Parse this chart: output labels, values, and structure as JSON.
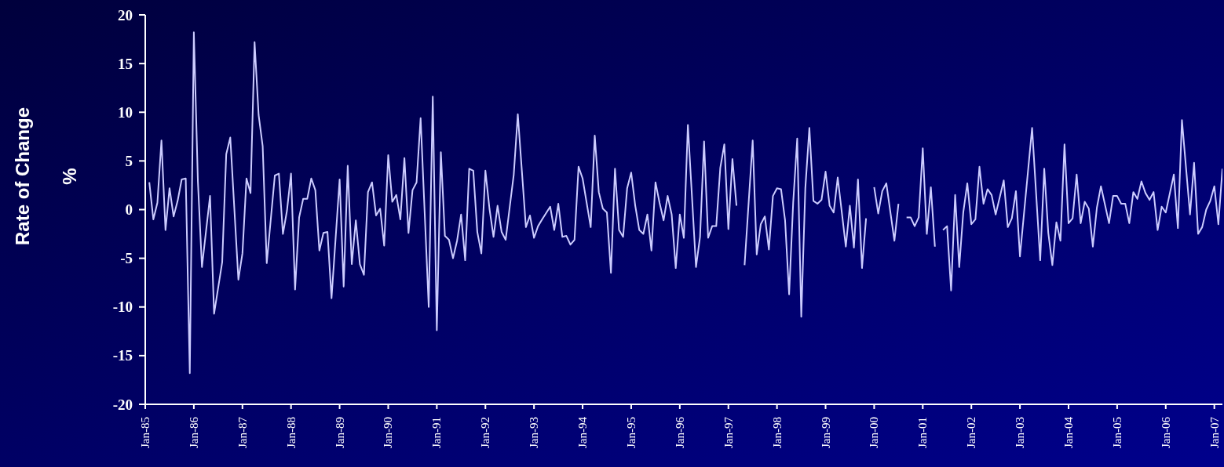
{
  "chart_data": {
    "type": "line",
    "ylabel": "Rate of Change %",
    "color": "#ccccff",
    "x": [
      "1985-02",
      "1985-03",
      "1985-04",
      "1985-05",
      "1985-06",
      "1985-07",
      "1985-08",
      "1985-09",
      "1985-10",
      "1985-11",
      "1985-12",
      "1986-01",
      "1986-02",
      "1986-03",
      "1986-05",
      "1986-06",
      "1986-08",
      "1986-09",
      "1986-10",
      "1986-12",
      "1987-01",
      "1987-02",
      "1987-03",
      "1987-04",
      "1987-05",
      "1987-06",
      "1987-07",
      "1987-09",
      "1987-10",
      "1987-11",
      "1987-12",
      "1988-01",
      "1988-02",
      "1988-03",
      "1988-04",
      "1988-05",
      "1988-06",
      "1988-07",
      "1988-08",
      "1988-09",
      "1988-10",
      "1988-11",
      "1989-01",
      "1989-02",
      "1989-03",
      "1989-04",
      "1989-05",
      "1989-06",
      "1989-07",
      "1989-08",
      "1989-09",
      "1989-10",
      "1989-11",
      "1989-12",
      "1990-01",
      "1990-02",
      "1990-03",
      "1990-04",
      "1990-05",
      "1990-06",
      "1990-07",
      "1990-08",
      "1990-09",
      "1990-11",
      "1990-12",
      "1991-01",
      "1991-02",
      "1991-03",
      "1991-04",
      "1991-05",
      "1991-06",
      "1991-07",
      "1991-08",
      "1991-09",
      "1991-10",
      "1991-11",
      "1991-12",
      "1992-01",
      "1992-02",
      "1992-03",
      "1992-04",
      "1992-05",
      "1992-06",
      "1992-08",
      "1992-09",
      "1992-11",
      "1992-12",
      "1993-01",
      "1993-02",
      "1993-03",
      "1993-05",
      "1993-06",
      "1993-07",
      "1993-08",
      "1993-09",
      "1993-10",
      "1993-11",
      "1993-12",
      "1994-01",
      "1994-03",
      "1994-04",
      "1994-05",
      "1994-06",
      "1994-07",
      "1994-08",
      "1994-09",
      "1994-10",
      "1994-11",
      "1994-12",
      "1995-01",
      "1995-02",
      "1995-03",
      "1995-04",
      "1995-05",
      "1995-06",
      "1995-07",
      "1995-08",
      "1995-09",
      "1995-10",
      "1995-11",
      "1995-12",
      "1996-01",
      "1996-02",
      "1996-03",
      "1996-05",
      "1996-06",
      "1996-07",
      "1996-08",
      "1996-09",
      "1996-10",
      "1996-11",
      "1996-12",
      "1997-01",
      "1997-02",
      "1997-03",
      "1997-04",
      "1997-05",
      "1997-07",
      "1997-08",
      "1997-09",
      "1997-10",
      "1997-11",
      "1997-12",
      "1998-01",
      "1998-02",
      "1998-03",
      "1998-04",
      "1998-05",
      "1998-06",
      "1998-07",
      "1998-08",
      "1998-09",
      "1998-10",
      "1998-11",
      "1998-12",
      "1999-01",
      "1999-02",
      "1999-03",
      "1999-04",
      "1999-06",
      "1999-07",
      "1999-08",
      "1999-09",
      "1999-10",
      "1999-11",
      "1999-12",
      "2000-01",
      "2000-02",
      "2000-03",
      "2000-04",
      "2000-06",
      "2000-07",
      "2000-08",
      "2000-09",
      "2000-10",
      "2000-11",
      "2000-12",
      "2001-01",
      "2001-02",
      "2001-03",
      "2001-04",
      "2001-05",
      "2001-06",
      "2001-07",
      "2001-08",
      "2001-09",
      "2001-10",
      "2001-11",
      "2001-12",
      "2002-01",
      "2002-02",
      "2002-03",
      "2002-04",
      "2002-05",
      "2002-06",
      "2002-07",
      "2002-09",
      "2002-10",
      "2002-11",
      "2002-12",
      "2003-01",
      "2003-04",
      "2003-06",
      "2003-07",
      "2003-08",
      "2003-09",
      "2003-10",
      "2003-11",
      "2003-12",
      "2004-01",
      "2004-02",
      "2004-03",
      "2004-04",
      "2004-05",
      "2004-06",
      "2004-07",
      "2004-08",
      "2004-09",
      "2004-11",
      "2004-12",
      "2005-01",
      "2005-02",
      "2005-03",
      "2005-04",
      "2005-05",
      "2005-06",
      "2005-07",
      "2005-08",
      "2005-09",
      "2005-10",
      "2005-11",
      "2005-12",
      "2006-01",
      "2006-03",
      "2006-04",
      "2006-05",
      "2006-07",
      "2006-08",
      "2006-09",
      "2006-10",
      "2006-11",
      "2006-12",
      "2007-01",
      "2007-02",
      "2007-03"
    ],
    "values": [
      2.8,
      -1.0,
      0.7,
      7.1,
      -2.1,
      2.2,
      -0.7,
      0.9,
      3.1,
      3.2,
      -16.8,
      18.2,
      2.9,
      -5.9,
      1.4,
      -10.7,
      -5.4,
      5.7,
      7.4,
      -7.2,
      -4.5,
      3.2,
      1.7,
      17.2,
      9.7,
      6.5,
      -5.5,
      3.5,
      3.7,
      -2.5,
      -0.1,
      3.7,
      -8.2,
      -0.8,
      1.1,
      1.1,
      3.2,
      2.0,
      -4.2,
      -2.4,
      -2.3,
      -9.1,
      3.1,
      -7.9,
      4.5,
      -5.6,
      -1.1,
      -5.6,
      -6.7,
      1.8,
      2.8,
      -0.6,
      0.1,
      -3.7,
      5.6,
      0.8,
      1.5,
      -1.0,
      5.3,
      -2.4,
      2.0,
      2.8,
      9.4,
      -10.0,
      11.6,
      -12.4,
      5.9,
      -2.7,
      -3.1,
      -5.0,
      -3.2,
      -0.5,
      -5.2,
      4.2,
      4.0,
      -2.3,
      -4.5,
      4.0,
      0.1,
      -2.8,
      0.4,
      -2.3,
      -3.1,
      3.6,
      9.8,
      -1.8,
      -0.6,
      -2.9,
      -1.7,
      -1.0,
      0.3,
      -2.1,
      0.6,
      -2.8,
      -2.7,
      -3.6,
      -3.1,
      4.4,
      3.2,
      -1.8,
      7.6,
      1.8,
      0.1,
      -0.3,
      -6.5,
      4.2,
      -2.1,
      -2.8,
      2.2,
      3.8,
      0.4,
      -2.1,
      -2.5,
      -0.5,
      -4.2,
      2.8,
      0.7,
      -1.1,
      1.4,
      -0.5,
      -6.0,
      -0.5,
      -2.9,
      8.7,
      -5.9,
      -2.8,
      7.0,
      -2.9,
      -1.7,
      -1.7,
      4.3,
      6.7,
      -2.0,
      5.2,
      0.4,
      null,
      -5.7,
      7.1,
      -4.6,
      -1.5,
      -0.7,
      -4.1,
      1.4,
      2.2,
      2.1,
      -1.1,
      -8.7,
      0.7,
      7.3,
      -11.0,
      2.2,
      8.4,
      0.9,
      0.6,
      1.0,
      3.9,
      0.4,
      -0.3,
      3.3,
      -3.8,
      0.4,
      -3.9,
      3.1,
      -6.0,
      -0.9,
      null,
      2.3,
      -0.4,
      1.9,
      2.7,
      -3.2,
      0.6,
      null,
      -0.8,
      -0.8,
      -1.7,
      -0.8,
      6.3,
      -2.5,
      2.3,
      -3.8,
      null,
      -2.1,
      -1.7,
      -8.3,
      1.5,
      -5.9,
      -0.3,
      2.7,
      -1.5,
      -1.0,
      4.4,
      0.6,
      2.1,
      1.5,
      -0.5,
      3.0,
      -1.8,
      -0.9,
      1.9,
      -4.8,
      8.4,
      -5.2,
      4.2,
      -2.4,
      -5.7,
      -1.3,
      -3.2,
      6.7,
      -1.4,
      -0.9,
      3.6,
      -1.4,
      0.8,
      0.1,
      -3.8,
      0.2,
      2.4,
      -1.4,
      1.4,
      1.4,
      0.6,
      0.6,
      -1.4,
      1.8,
      1.1,
      2.9,
      1.7,
      1.0,
      1.8,
      -2.1,
      0.3,
      -0.3,
      3.6,
      -1.9,
      9.2,
      -0.5,
      4.8,
      -2.5,
      -1.8,
      0.0,
      0.9,
      2.4,
      -1.5,
      4.2
    ],
    "xlim": [
      "1985-01",
      "2007-03"
    ],
    "xticks": [
      {
        "value": "1985-01",
        "label": "Jan-85"
      },
      {
        "value": "1986-01",
        "label": "Jan-86"
      },
      {
        "value": "1987-01",
        "label": "Jan-87"
      },
      {
        "value": "1988-01",
        "label": "Jan-88"
      },
      {
        "value": "1989-01",
        "label": "Jan-89"
      },
      {
        "value": "1990-01",
        "label": "Jan-90"
      },
      {
        "value": "1991-01",
        "label": "Jan-91"
      },
      {
        "value": "1992-01",
        "label": "Jan-92"
      },
      {
        "value": "1993-01",
        "label": "Jan-93"
      },
      {
        "value": "1994-01",
        "label": "Jan-94"
      },
      {
        "value": "1995-01",
        "label": "Jan-95"
      },
      {
        "value": "1996-01",
        "label": "Jan-96"
      },
      {
        "value": "1997-01",
        "label": "Jan-97"
      },
      {
        "value": "1998-01",
        "label": "Jan-98"
      },
      {
        "value": "1999-01",
        "label": "Jan-99"
      },
      {
        "value": "2000-01",
        "label": "Jan-00"
      },
      {
        "value": "2001-01",
        "label": "Jan-01"
      },
      {
        "value": "2002-01",
        "label": "Jan-02"
      },
      {
        "value": "2003-01",
        "label": "Jan-03"
      },
      {
        "value": "2004-01",
        "label": "Jan-04"
      },
      {
        "value": "2005-01",
        "label": "Jan-05"
      },
      {
        "value": "2006-01",
        "label": "Jan-06"
      },
      {
        "value": "2007-01",
        "label": "Jan-07"
      }
    ],
    "ylim": [
      -20,
      20
    ],
    "yticks": [
      -20,
      -15,
      -10,
      -5,
      0,
      5,
      10,
      15,
      20
    ],
    "grid": false,
    "legend": false,
    "marker": "none",
    "line_style": "solid"
  }
}
